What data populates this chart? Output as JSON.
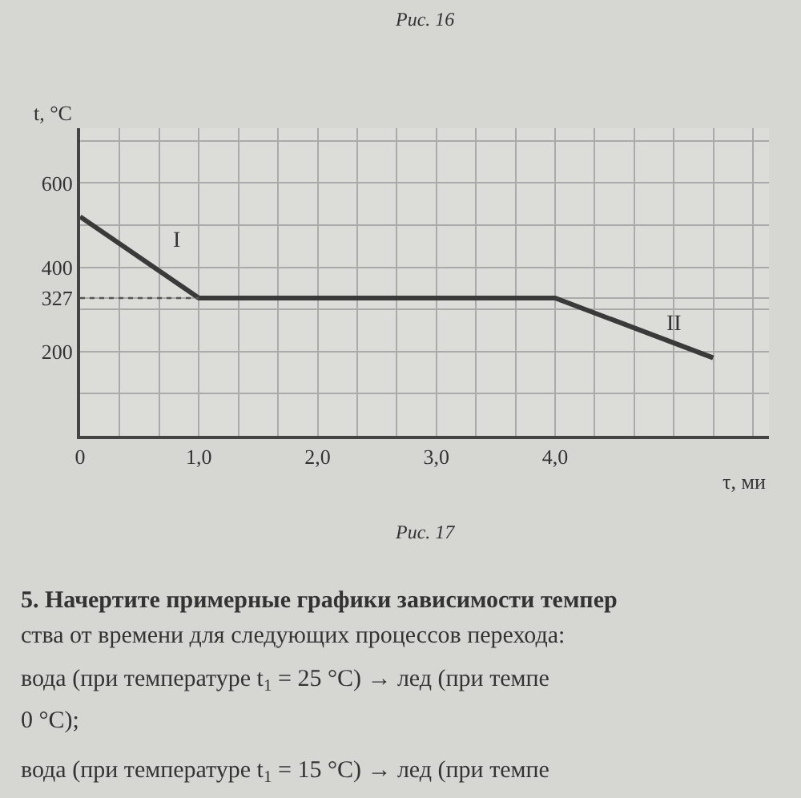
{
  "chart_data": {
    "type": "line",
    "xlabel": "τ, ми",
    "ylabel": "t, °C",
    "x": [
      0,
      1.0,
      4.0,
      5.33
    ],
    "series": [
      {
        "color": "#3a3a3a",
        "values": [
          520,
          327,
          327,
          185
        ]
      }
    ],
    "xlim": [
      0,
      5.8
    ],
    "ylim": [
      0,
      730
    ],
    "xticks": [
      0,
      {
        "value": 0.333,
        "label": null
      },
      {
        "value": 0.667,
        "label": null
      },
      {
        "value": 1,
        "label": "1,0"
      },
      {
        "value": 1.333,
        "label": null
      },
      {
        "value": 1.667,
        "label": null
      },
      {
        "value": 2,
        "label": "2,0"
      },
      {
        "value": 2.333,
        "label": null
      },
      {
        "value": 2.667,
        "label": null
      },
      {
        "value": 3,
        "label": "3,0"
      },
      {
        "value": 3.333,
        "label": null
      },
      {
        "value": 3.667,
        "label": null
      },
      {
        "value": 4,
        "label": "4,0"
      },
      {
        "value": 4.333,
        "label": null
      },
      {
        "value": 4.667,
        "label": null
      },
      {
        "value": 5,
        "label": null
      },
      {
        "value": 5.333,
        "label": null
      },
      {
        "value": 5.667,
        "label": null
      }
    ],
    "yticks": [
      {
        "value": 100,
        "label": null
      },
      200,
      {
        "value": 300,
        "label": null
      },
      327,
      400,
      {
        "value": 500,
        "label": null
      },
      600,
      {
        "value": 700,
        "label": null
      }
    ],
    "grid": true,
    "marker": "none",
    "line_style": "solid",
    "ref_lines": [
      {
        "axis": "y",
        "value": 327,
        "line_style": "dotted",
        "color": "#555555"
      }
    ],
    "annotations": [
      "I",
      "II",
      "Рис. 16",
      "Рис. 17",
      "5. Начертите примерные графики зависимости темпер",
      "ства от времени для следующих процессов перехода:",
      "вода (при температуре t$_{1}$ = 25 °C) → лед (при темпе",
      "0 °C);",
      "вода (при температуре t$_{1}$ = 15 °C) → лед (при темпе"
    ]
  }
}
